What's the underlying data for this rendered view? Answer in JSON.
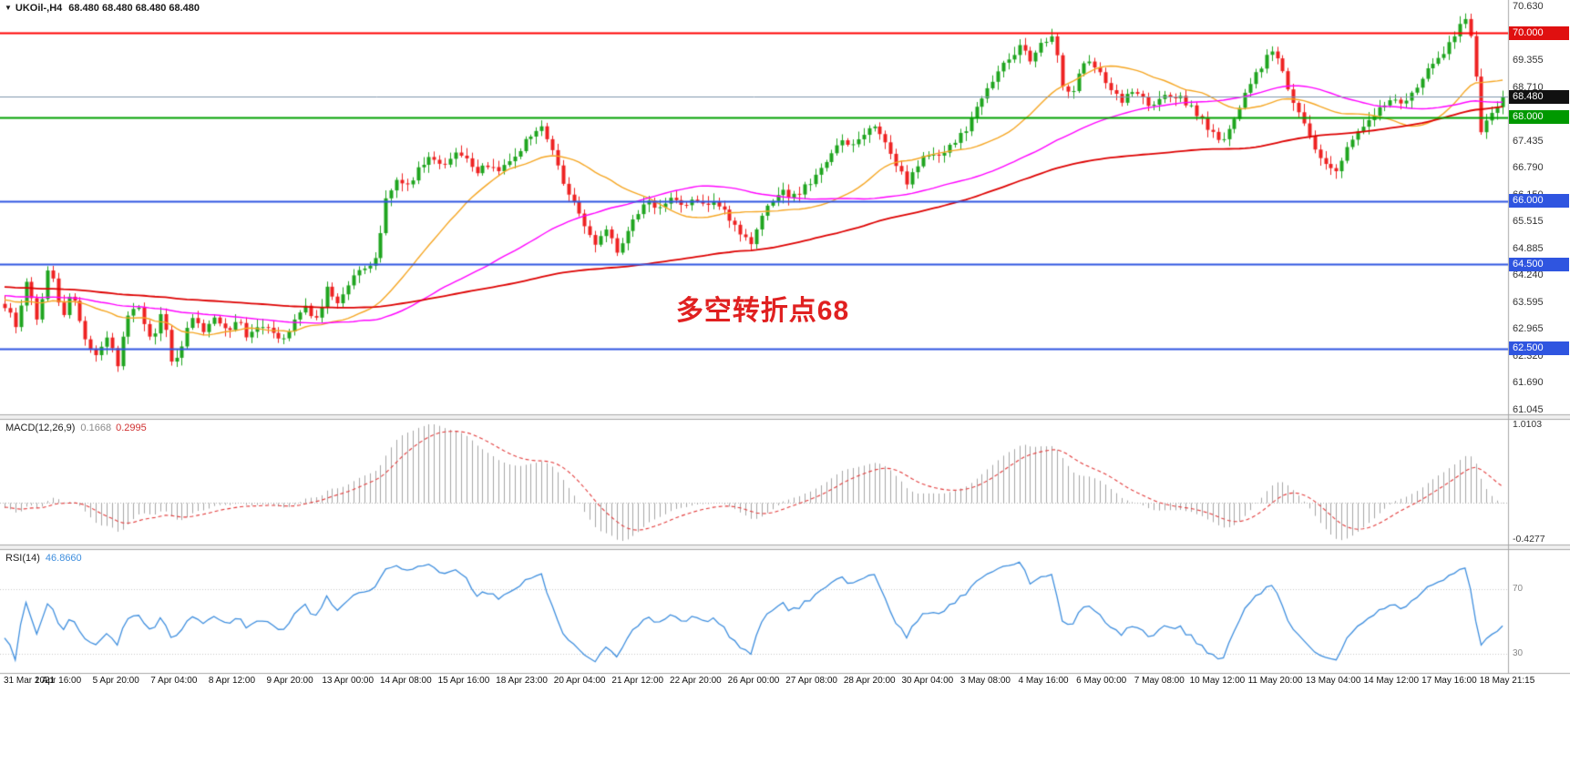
{
  "header": {
    "collapse_icon": "▼",
    "symbol": "UKOil-,H4",
    "ohlc_values": "68.480 68.480 68.480 68.480"
  },
  "chart_data": [
    {
      "type": "candlestick",
      "symbol": "UKOil-",
      "timeframe": "H4",
      "current_price": 68.48,
      "annotation": {
        "text": "多空转折点68",
        "color": "#e02020"
      },
      "up_color": "#1fa51f",
      "down_color": "#ee2222",
      "y_ticks": [
        "70.630",
        "69.355",
        "68.710",
        "67.435",
        "66.790",
        "66.150",
        "65.515",
        "64.885",
        "64.240",
        "63.595",
        "62.965",
        "62.320",
        "61.690",
        "61.045"
      ],
      "price_badges": [
        {
          "label": "70.000",
          "price": 70.0,
          "color": "#e01010"
        },
        {
          "label": "68.480",
          "price": 68.48,
          "color": "#111111"
        },
        {
          "label": "68.000",
          "price": 68.0,
          "color": "#009900"
        },
        {
          "label": "66.000",
          "price": 66.0,
          "color": "#2f55e0"
        },
        {
          "label": "64.500",
          "price": 64.5,
          "color": "#2f55e0"
        },
        {
          "label": "62.500",
          "price": 62.5,
          "color": "#2f55e0"
        }
      ],
      "horizontal_lines": [
        {
          "price": 70.0,
          "color": "#ff0000",
          "width": 2
        },
        {
          "price": 68.0,
          "color": "#00a000",
          "width": 2
        },
        {
          "price": 66.0,
          "color": "#2f55e0",
          "width": 2
        },
        {
          "price": 64.5,
          "color": "#2f55e0",
          "width": 2
        },
        {
          "price": 62.5,
          "color": "#2f55e0",
          "width": 2
        }
      ],
      "current_price_line_color": "#7f96ad",
      "moving_averages": [
        {
          "name": "fast-ma",
          "color": "#f5a623",
          "period": 24
        },
        {
          "name": "mid-ma",
          "color": "#ff00ff",
          "period": 60
        },
        {
          "name": "slow-ma",
          "color": "#dd0000",
          "period": 130
        }
      ],
      "x_labels": [
        "31 Mar 2021",
        "1 Apr 16:00",
        "5 Apr 20:00",
        "7 Apr 04:00",
        "8 Apr 12:00",
        "9 Apr 20:00",
        "13 Apr 00:00",
        "14 Apr 08:00",
        "15 Apr 16:00",
        "18 Apr 23:00",
        "20 Apr 04:00",
        "21 Apr 12:00",
        "22 Apr 20:00",
        "26 Apr 00:00",
        "27 Apr 08:00",
        "28 Apr 20:00",
        "30 Apr 04:00",
        "3 May 08:00",
        "4 May 16:00",
        "6 May 00:00",
        "7 May 08:00",
        "10 May 12:00",
        "11 May 20:00",
        "13 May 04:00",
        "14 May 12:00",
        "17 May 16:00",
        "18 May 21:15"
      ],
      "candles_count": 280,
      "price_path": [
        [
          0,
          63.5
        ],
        [
          0.008,
          63.0
        ],
        [
          0.015,
          64.2
        ],
        [
          0.022,
          63.1
        ],
        [
          0.03,
          64.6
        ],
        [
          0.038,
          63.2
        ],
        [
          0.045,
          63.9
        ],
        [
          0.052,
          62.9
        ],
        [
          0.06,
          62.3
        ],
        [
          0.068,
          62.8
        ],
        [
          0.075,
          62.1
        ],
        [
          0.082,
          63.3
        ],
        [
          0.09,
          63.5
        ],
        [
          0.098,
          62.6
        ],
        [
          0.105,
          63.4
        ],
        [
          0.112,
          62.0
        ],
        [
          0.118,
          62.6
        ],
        [
          0.125,
          63.2
        ],
        [
          0.132,
          62.9
        ],
        [
          0.14,
          63.3
        ],
        [
          0.148,
          62.9
        ],
        [
          0.155,
          63.2
        ],
        [
          0.162,
          62.8
        ],
        [
          0.17,
          63.1
        ],
        [
          0.178,
          63.0
        ],
        [
          0.185,
          62.7
        ],
        [
          0.192,
          63.1
        ],
        [
          0.2,
          63.5
        ],
        [
          0.208,
          63.2
        ],
        [
          0.215,
          63.9
        ],
        [
          0.222,
          63.6
        ],
        [
          0.23,
          64.1
        ],
        [
          0.24,
          64.4
        ],
        [
          0.248,
          64.6
        ],
        [
          0.255,
          66.2
        ],
        [
          0.262,
          66.5
        ],
        [
          0.27,
          66.4
        ],
        [
          0.278,
          66.9
        ],
        [
          0.285,
          67.1
        ],
        [
          0.292,
          66.8
        ],
        [
          0.3,
          67.2
        ],
        [
          0.308,
          67.0
        ],
        [
          0.315,
          66.6
        ],
        [
          0.322,
          66.9
        ],
        [
          0.33,
          66.7
        ],
        [
          0.34,
          67.1
        ],
        [
          0.35,
          67.5
        ],
        [
          0.358,
          67.8
        ],
        [
          0.365,
          67.3
        ],
        [
          0.372,
          66.5
        ],
        [
          0.38,
          66.0
        ],
        [
          0.388,
          65.3
        ],
        [
          0.395,
          64.9
        ],
        [
          0.402,
          65.4
        ],
        [
          0.408,
          64.8
        ],
        [
          0.415,
          65.2
        ],
        [
          0.422,
          65.7
        ],
        [
          0.43,
          66.0
        ],
        [
          0.438,
          65.8
        ],
        [
          0.445,
          66.1
        ],
        [
          0.452,
          65.9
        ],
        [
          0.46,
          66.1
        ],
        [
          0.468,
          65.8
        ],
        [
          0.475,
          66.0
        ],
        [
          0.482,
          65.7
        ],
        [
          0.49,
          65.3
        ],
        [
          0.498,
          64.9
        ],
        [
          0.505,
          65.6
        ],
        [
          0.512,
          66.0
        ],
        [
          0.52,
          66.2
        ],
        [
          0.528,
          66.1
        ],
        [
          0.535,
          66.4
        ],
        [
          0.542,
          66.6
        ],
        [
          0.55,
          67.0
        ],
        [
          0.558,
          67.5
        ],
        [
          0.565,
          67.3
        ],
        [
          0.572,
          67.6
        ],
        [
          0.58,
          67.8
        ],
        [
          0.588,
          67.4
        ],
        [
          0.595,
          66.9
        ],
        [
          0.602,
          66.4
        ],
        [
          0.61,
          66.9
        ],
        [
          0.618,
          67.2
        ],
        [
          0.625,
          67.0
        ],
        [
          0.632,
          67.4
        ],
        [
          0.64,
          67.6
        ],
        [
          0.648,
          68.2
        ],
        [
          0.655,
          68.6
        ],
        [
          0.662,
          69.0
        ],
        [
          0.67,
          69.4
        ],
        [
          0.678,
          69.7
        ],
        [
          0.685,
          69.3
        ],
        [
          0.692,
          69.8
        ],
        [
          0.7,
          69.9
        ],
        [
          0.706,
          68.8
        ],
        [
          0.712,
          68.5
        ],
        [
          0.718,
          69.2
        ],
        [
          0.725,
          69.4
        ],
        [
          0.731,
          69.0
        ],
        [
          0.738,
          68.7
        ],
        [
          0.745,
          68.3
        ],
        [
          0.752,
          68.6
        ],
        [
          0.76,
          68.4
        ],
        [
          0.768,
          68.2
        ],
        [
          0.775,
          68.6
        ],
        [
          0.782,
          68.5
        ],
        [
          0.79,
          68.3
        ],
        [
          0.798,
          68.0
        ],
        [
          0.806,
          67.6
        ],
        [
          0.812,
          67.4
        ],
        [
          0.818,
          67.8
        ],
        [
          0.825,
          68.3
        ],
        [
          0.832,
          68.8
        ],
        [
          0.84,
          69.3
        ],
        [
          0.846,
          69.6
        ],
        [
          0.852,
          69.2
        ],
        [
          0.858,
          68.6
        ],
        [
          0.865,
          68.0
        ],
        [
          0.872,
          67.4
        ],
        [
          0.88,
          66.9
        ],
        [
          0.888,
          66.7
        ],
        [
          0.895,
          67.2
        ],
        [
          0.902,
          67.6
        ],
        [
          0.91,
          67.9
        ],
        [
          0.918,
          68.2
        ],
        [
          0.925,
          68.4
        ],
        [
          0.932,
          68.3
        ],
        [
          0.94,
          68.6
        ],
        [
          0.948,
          69.0
        ],
        [
          0.955,
          69.4
        ],
        [
          0.962,
          69.6
        ],
        [
          0.968,
          70.0
        ],
        [
          0.974,
          70.45
        ],
        [
          0.98,
          69.8
        ],
        [
          0.985,
          67.6
        ],
        [
          0.99,
          67.9
        ],
        [
          0.995,
          68.2
        ],
        [
          1,
          68.48
        ]
      ],
      "ylim": [
        61.045,
        70.63
      ]
    },
    {
      "type": "macd",
      "label": "MACD(12,26,9)",
      "value_main": "0.1668",
      "value_signal": "0.2995",
      "params": [
        12,
        26,
        9
      ],
      "axis_top": "1.0103",
      "axis_bottom": "-0.4277",
      "histogram_color": "#a6a6a6",
      "signal_color": "#e23b3b"
    },
    {
      "type": "rsi",
      "label": "RSI(14)",
      "value": "46.8660",
      "period": 14,
      "levels": [
        "70",
        "30"
      ],
      "line_color": "#3e8ede"
    }
  ]
}
